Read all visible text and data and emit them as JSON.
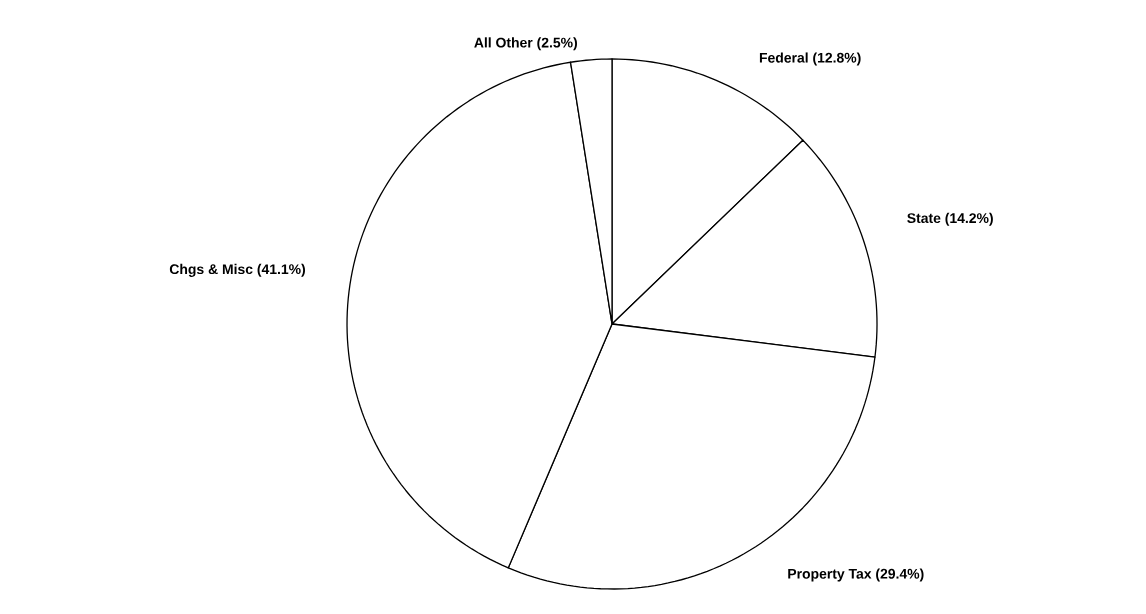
{
  "chart_data": {
    "type": "pie",
    "categories": [
      "Federal (12.8%)",
      "State (14.2%)",
      "Property Tax (29.4%)",
      "Chgs & Misc (41.1%)",
      "All Other (2.5%)"
    ],
    "values": [
      12.8,
      14.2,
      29.4,
      41.1,
      2.5
    ],
    "colors": [
      "#ffffff",
      "#ffffff",
      "#ffffff",
      "#ffffff",
      "#ffffff"
    ]
  }
}
